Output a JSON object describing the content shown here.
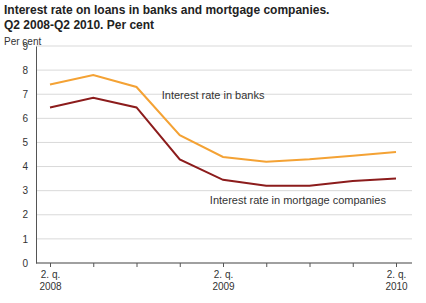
{
  "chart_data": {
    "type": "line",
    "title": "Interest rate on loans in banks and mortgage companies.",
    "subtitle": "Q2 2008-Q2 2010. Per cent",
    "y_label": "Per cent",
    "categories": [
      "2. q. 2008",
      null,
      null,
      null,
      "2. q. 2009",
      null,
      null,
      null,
      "2. q. 2010"
    ],
    "series": [
      {
        "name": "Interest rate in banks",
        "color": "#f4a234",
        "values": [
          7.4,
          7.8,
          7.3,
          5.3,
          4.4,
          4.2,
          4.3,
          4.45,
          4.6
        ]
      },
      {
        "name": "Interest rate in mortgage companies",
        "color": "#8c1c1c",
        "values": [
          6.45,
          6.85,
          6.45,
          4.3,
          3.45,
          3.2,
          3.2,
          3.4,
          3.5
        ]
      }
    ],
    "ylim": [
      0,
      9
    ],
    "yticks": [
      0,
      1,
      2,
      3,
      4,
      5,
      6,
      7,
      8,
      9
    ],
    "grid": true
  }
}
